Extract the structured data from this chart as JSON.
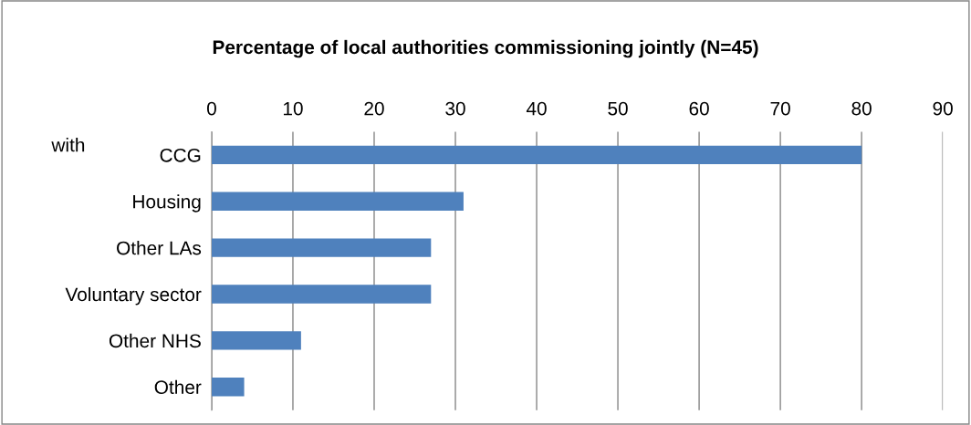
{
  "chart_data": {
    "type": "bar",
    "orientation": "horizontal",
    "title": "Percentage of local authorities commissioning jointly (N=45)",
    "categories": [
      "CCG",
      "Housing",
      "Other LAs",
      "Voluntary sector",
      "Other NHS",
      "Other"
    ],
    "values": [
      80,
      31,
      27,
      27,
      11,
      4
    ],
    "color": "#4f81bd",
    "xlim": [
      0,
      90
    ],
    "xticks": [
      0,
      10,
      20,
      30,
      40,
      50,
      60,
      70,
      80,
      90
    ],
    "grid": "x",
    "annotations": [
      "with"
    ]
  }
}
